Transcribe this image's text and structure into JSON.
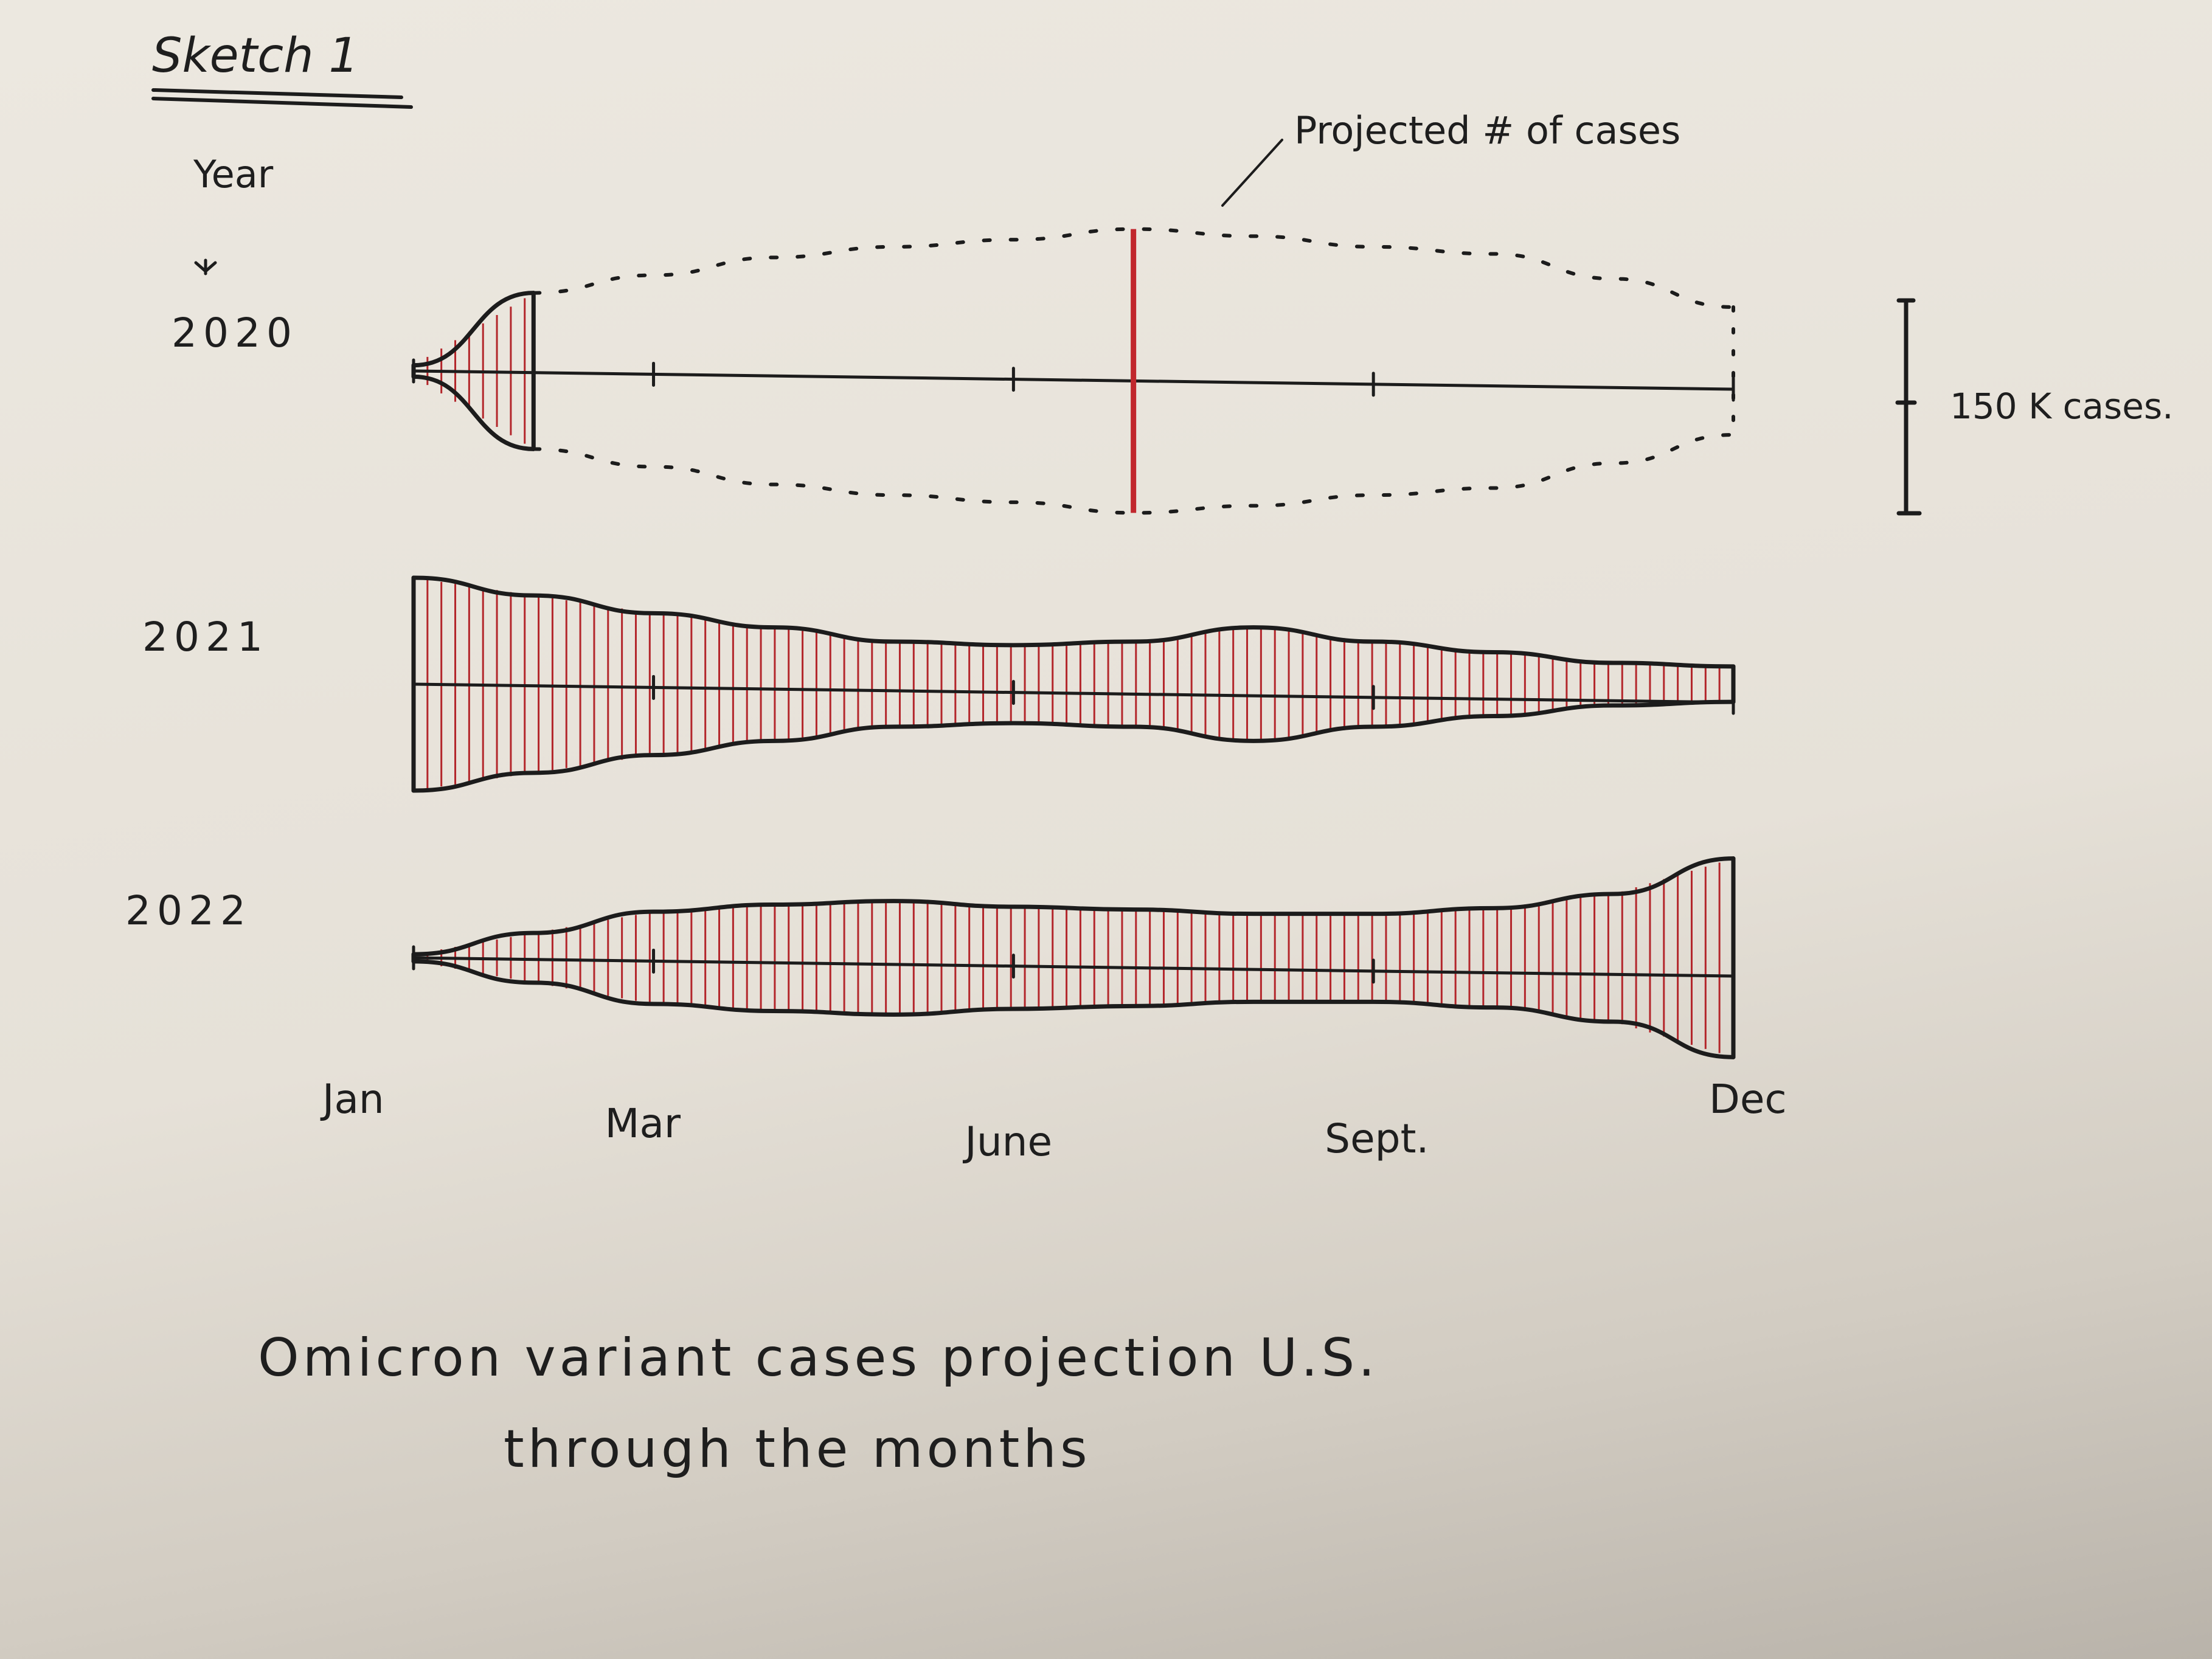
{
  "title": "Sketch 1",
  "caption_line1": "Omicron variant cases projection U.S.",
  "caption_line2": "through the months",
  "chart_data": {
    "type": "area",
    "y_axis_label": "Year",
    "rows": [
      "2020",
      "2021",
      "2022"
    ],
    "x_tick_labels": [
      "Jan",
      "Mar",
      "June",
      "Sept.",
      "Dec"
    ],
    "x": [
      0,
      1,
      2,
      3,
      4,
      5,
      6,
      7,
      8,
      9,
      10,
      11
    ],
    "scale_bar": {
      "label": "150 K cases.",
      "value": 150000
    },
    "annotation": "Projected # of cases",
    "series": [
      {
        "name": "2020",
        "actual_months": [
          0,
          1
        ],
        "values": [
          8000,
          110000,
          135000,
          160000,
          175000,
          185000,
          200000,
          190000,
          175000,
          165000,
          130000,
          90000
        ]
      },
      {
        "name": "2021",
        "values": [
          150000,
          125000,
          100000,
          80000,
          60000,
          55000,
          60000,
          80000,
          60000,
          45000,
          30000,
          25000
        ]
      },
      {
        "name": "2022",
        "values": [
          5000,
          35000,
          65000,
          75000,
          80000,
          72000,
          68000,
          62000,
          62000,
          70000,
          90000,
          140000
        ]
      }
    ],
    "colors": {
      "ink": "#1c1c1c",
      "hatch": "#b3262b",
      "projection_line": "#c1272d"
    },
    "grid": false
  }
}
